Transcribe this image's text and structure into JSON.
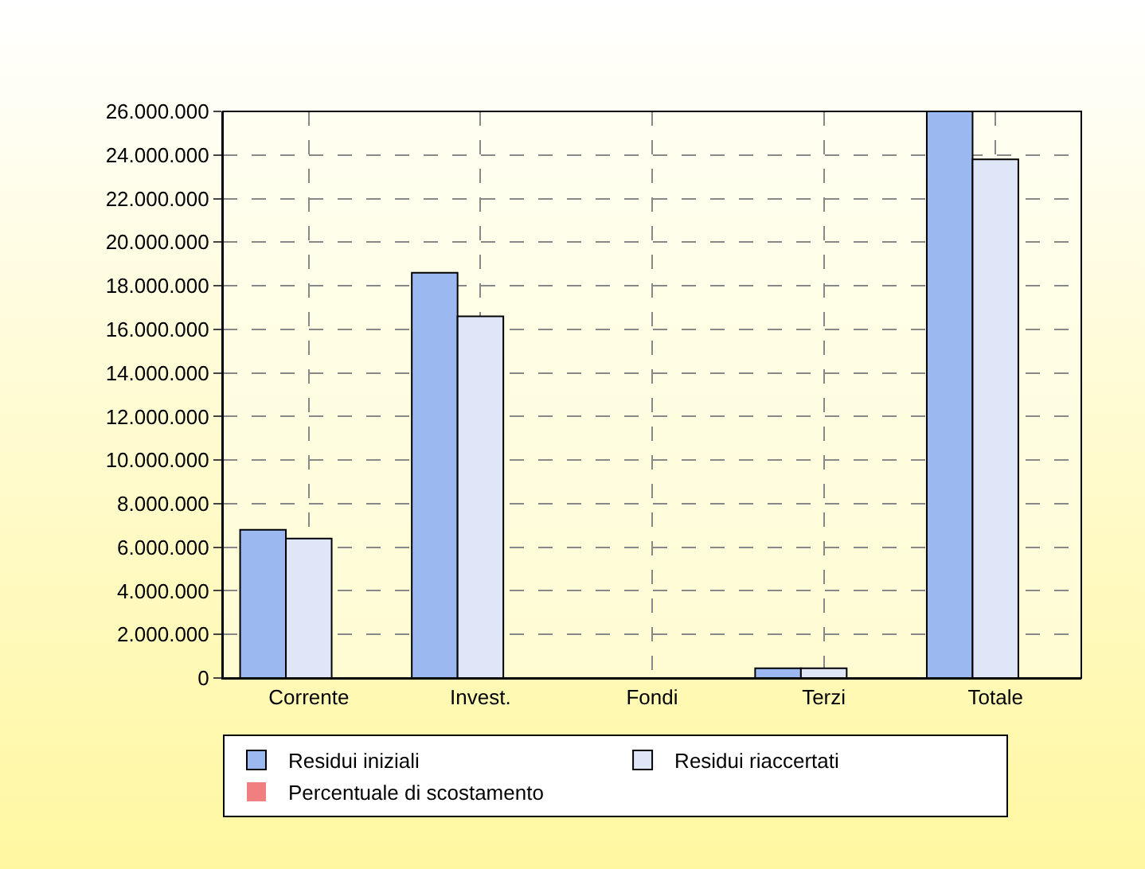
{
  "chart_data": {
    "type": "bar",
    "categories": [
      "Corrente",
      "Invest.",
      "Fondi",
      "Terzi",
      "Totale"
    ],
    "series": [
      {
        "name": "Residui iniziali",
        "color": "#9cb8f0",
        "values": [
          6800000,
          18600000,
          0,
          450000,
          26000000
        ]
      },
      {
        "name": "Residui riaccertati",
        "color": "#dfe6f8",
        "values": [
          6400000,
          16600000,
          0,
          450000,
          23800000
        ]
      },
      {
        "name": "Percentuale di scostamento",
        "color": "#f08080",
        "values": [
          0,
          0,
          0,
          0,
          0
        ]
      }
    ],
    "ylim": [
      0,
      26000000
    ],
    "yticks": [
      0,
      {
        "value": 2000000,
        "label": "2.000.000"
      },
      {
        "value": 4000000,
        "label": "4.000.000"
      },
      {
        "value": 6000000,
        "label": "6.000.000"
      },
      {
        "value": 8000000,
        "label": "8.000.000"
      },
      {
        "value": 10000000,
        "label": "10.000.000"
      },
      {
        "value": 12000000,
        "label": "12.000.000"
      },
      {
        "value": 14000000,
        "label": "14.000.000"
      },
      {
        "value": 16000000,
        "label": "16.000.000"
      },
      {
        "value": 18000000,
        "label": "18.000.000"
      },
      {
        "value": 20000000,
        "label": "20.000.000"
      },
      {
        "value": 22000000,
        "label": "22.000.000"
      },
      {
        "value": 24000000,
        "label": "24.000.000"
      },
      {
        "value": 26000000,
        "label": "26.000.000"
      }
    ],
    "grid": true,
    "legend": "bottom"
  }
}
